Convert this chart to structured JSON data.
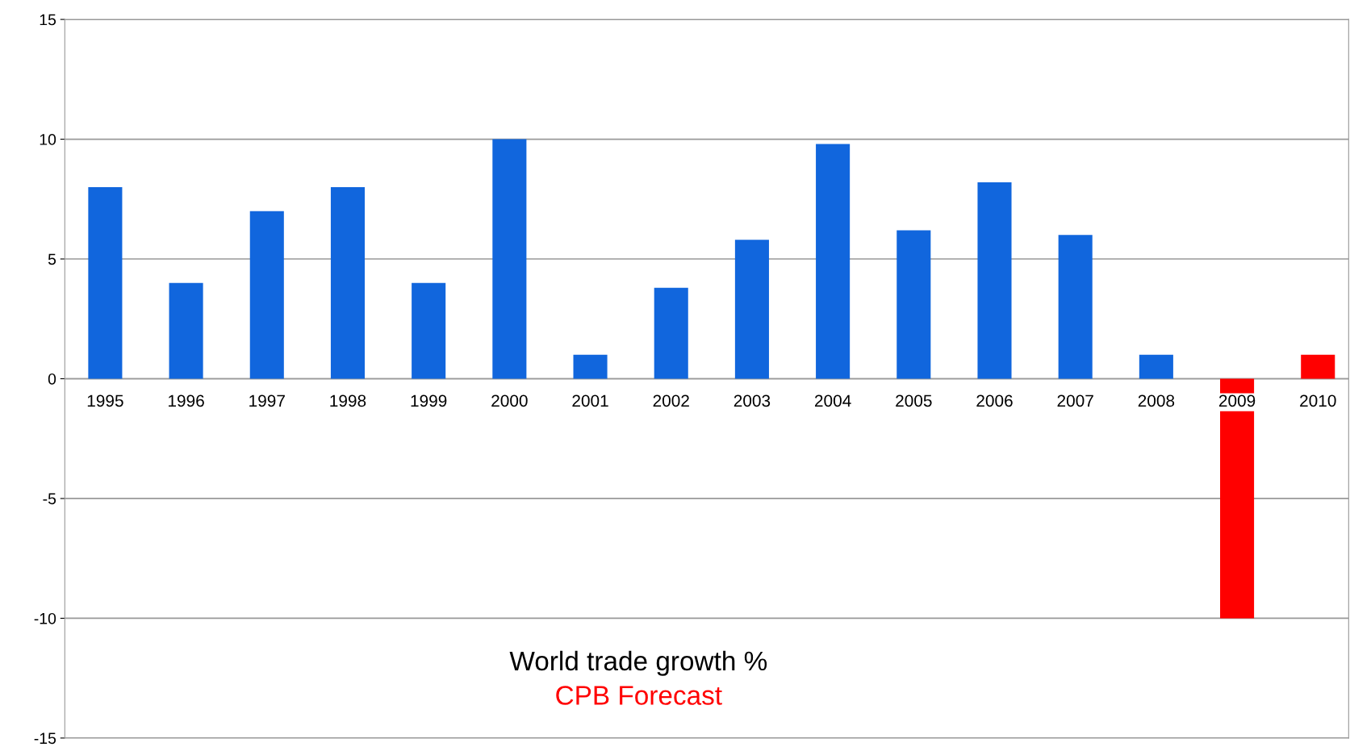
{
  "chart_data": {
    "type": "bar",
    "categories": [
      "1995",
      "1996",
      "1997",
      "1998",
      "1999",
      "2000",
      "2001",
      "2002",
      "2003",
      "2004",
      "2005",
      "2006",
      "2007",
      "2008",
      "2009",
      "2010"
    ],
    "values": [
      8,
      4,
      7,
      8,
      4,
      10,
      1,
      3.8,
      5.8,
      9.8,
      6.2,
      8.2,
      6,
      1,
      -10,
      1
    ],
    "colors": [
      "#1166dd",
      "#1166dd",
      "#1166dd",
      "#1166dd",
      "#1166dd",
      "#1166dd",
      "#1166dd",
      "#1166dd",
      "#1166dd",
      "#1166dd",
      "#1166dd",
      "#1166dd",
      "#1166dd",
      "#1166dd",
      "#ff0000",
      "#ff0000"
    ],
    "ylim": [
      -15,
      15
    ],
    "yticks": [
      -15,
      -10,
      -5,
      0,
      5,
      10,
      15
    ],
    "grid": "y",
    "annotations": [
      "World trade growth %",
      "CPB Forecast"
    ]
  }
}
